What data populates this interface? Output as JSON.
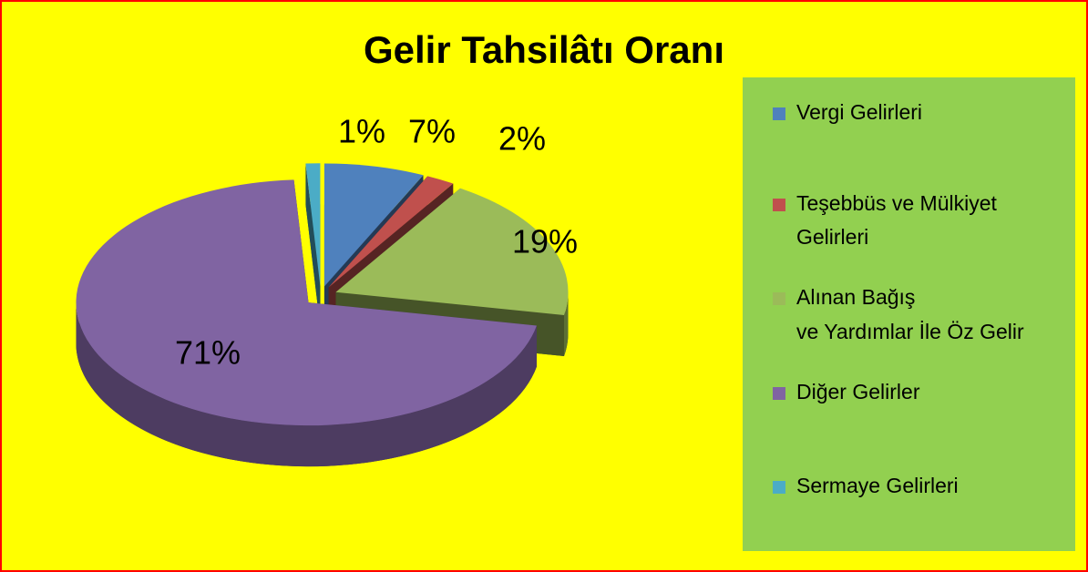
{
  "chart_data": {
    "type": "pie3d",
    "title": "Gelir Tahsilâtı Oranı",
    "categories": [
      "Vergi Gelirleri",
      "Teşebbüs ve Mülkiyet Gelirleri",
      "Alınan Bağış ve Yardımlar İle Öz Gelir",
      "Diğer Gelirler",
      "Sermaye Gelirleri"
    ],
    "values": [
      7,
      2,
      19,
      71,
      1
    ],
    "value_labels": [
      "7%",
      "2%",
      "19%",
      "71%",
      "1%"
    ],
    "colors": [
      "#4f81bd",
      "#c0504d",
      "#9bbb59",
      "#8064a2",
      "#4bacc6"
    ],
    "legend": "right"
  }
}
